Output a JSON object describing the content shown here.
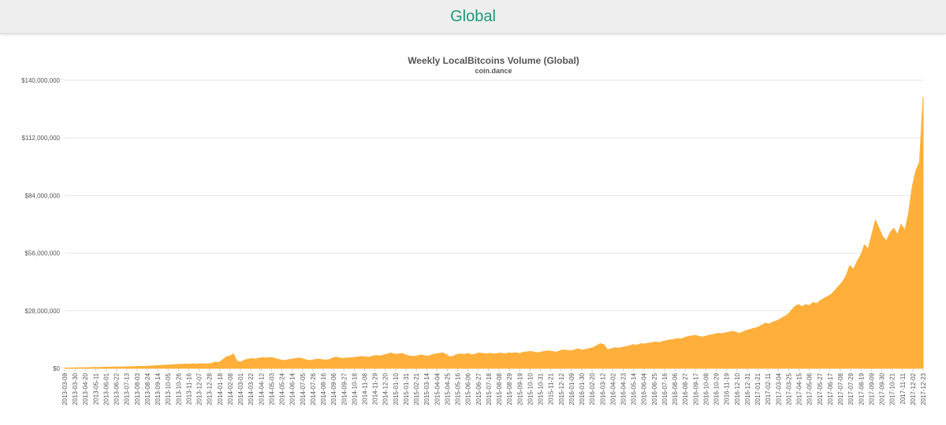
{
  "header": {
    "title": "Global"
  },
  "chart_data": {
    "type": "area",
    "title": "Weekly LocalBitcoins Volume (Global)",
    "subtitle": "coin.dance",
    "xlabel": "",
    "ylabel": "",
    "ylim": [
      0,
      140000000
    ],
    "grid": true,
    "legend": "none",
    "color": "#ffaf3a",
    "y_ticks": [
      {
        "value": 0,
        "label": "$0"
      },
      {
        "value": 28000000,
        "label": "$28,000,000"
      },
      {
        "value": 56000000,
        "label": "$56,000,000"
      },
      {
        "value": 84000000,
        "label": "$84,000,000"
      },
      {
        "value": 112000000,
        "label": "$112,000,000"
      },
      {
        "value": 140000000,
        "label": "$140,000,000"
      }
    ],
    "x_tick_labels": [
      "2013-03-09",
      "2013-03-30",
      "2013-04-20",
      "2013-05-11",
      "2013-06-01",
      "2013-06-22",
      "2013-07-13",
      "2013-08-03",
      "2013-08-24",
      "2013-09-14",
      "2013-10-05",
      "2013-10-26",
      "2013-11-16",
      "2013-12-07",
      "2013-12-28",
      "2014-01-18",
      "2014-02-08",
      "2014-03-01",
      "2014-03-22",
      "2014-04-12",
      "2014-05-03",
      "2014-05-24",
      "2014-06-14",
      "2014-07-05",
      "2014-07-26",
      "2014-08-16",
      "2014-09-06",
      "2014-09-27",
      "2014-10-18",
      "2014-11-08",
      "2014-11-29",
      "2014-12-20",
      "2015-01-10",
      "2015-01-31",
      "2015-02-21",
      "2015-03-14",
      "2015-04-04",
      "2015-04-25",
      "2015-05-16",
      "2015-06-06",
      "2015-06-27",
      "2015-07-18",
      "2015-08-08",
      "2015-08-29",
      "2015-09-19",
      "2015-10-10",
      "2015-10-31",
      "2015-11-21",
      "2015-12-12",
      "2016-01-09",
      "2016-01-30",
      "2016-02-20",
      "2016-03-12",
      "2016-04-02",
      "2016-04-23",
      "2016-05-14",
      "2016-06-04",
      "2016-06-25",
      "2016-07-16",
      "2016-08-06",
      "2016-08-27",
      "2016-09-17",
      "2016-10-08",
      "2016-10-29",
      "2016-11-19",
      "2016-12-10",
      "2016-12-31",
      "2017-01-21",
      "2017-02-11",
      "2017-03-04",
      "2017-03-25",
      "2017-04-15",
      "2017-05-06",
      "2017-05-27",
      "2017-06-17",
      "2017-07-08",
      "2017-07-29",
      "2017-08-19",
      "2017-09-09",
      "2017-09-30",
      "2017-10-21",
      "2017-11-11",
      "2017-12-02",
      "2017-12-23"
    ],
    "x_start": "2013-03-09",
    "x_end": "2017-12-23",
    "interval": "weekly",
    "values": [
      100000,
      150000,
      200000,
      250000,
      300000,
      350000,
      300000,
      400000,
      500000,
      450000,
      500000,
      600000,
      550000,
      600000,
      700000,
      650000,
      700000,
      750000,
      800000,
      850000,
      900000,
      950000,
      1000000,
      1100000,
      1200000,
      1300000,
      1400000,
      1500000,
      1600000,
      1700000,
      1800000,
      1900000,
      2000000,
      2100000,
      2000000,
      2200000,
      2000000,
      2300000,
      2100000,
      2200000,
      2400000,
      3000000,
      2800000,
      4000000,
      5500000,
      6000000,
      7000000,
      3500000,
      3000000,
      4000000,
      4500000,
      4800000,
      4500000,
      5000000,
      5200000,
      5000000,
      5300000,
      5000000,
      4500000,
      4000000,
      3800000,
      4200000,
      4500000,
      4800000,
      5000000,
      4600000,
      4000000,
      3800000,
      4200000,
      4500000,
      4300000,
      4000000,
      4200000,
      5000000,
      5500000,
      5000000,
      4800000,
      5000000,
      5100000,
      5300000,
      5500000,
      5800000,
      5600000,
      5400000,
      6000000,
      6200000,
      6000000,
      6500000,
      7000000,
      7500000,
      6800000,
      7000000,
      7200000,
      6500000,
      6000000,
      5800000,
      6000000,
      6500000,
      6200000,
      5800000,
      6500000,
      7000000,
      7200000,
      7500000,
      6800000,
      5500000,
      6000000,
      6800000,
      7000000,
      6800000,
      7200000,
      6500000,
      7000000,
      7500000,
      7200000,
      7000000,
      7300000,
      7000000,
      7200000,
      7400000,
      7000000,
      7500000,
      7300000,
      7600000,
      7200000,
      7800000,
      8000000,
      8200000,
      7900000,
      7500000,
      8000000,
      8300000,
      8500000,
      8200000,
      7800000,
      8500000,
      9000000,
      8700000,
      8500000,
      9000000,
      9500000,
      8800000,
      9200000,
      9600000,
      10000000,
      11000000,
      12000000,
      11500000,
      9000000,
      9500000,
      10000000,
      9800000,
      10200000,
      10500000,
      11000000,
      11500000,
      11200000,
      12000000,
      11800000,
      12200000,
      12500000,
      12800000,
      12500000,
      13000000,
      13500000,
      13800000,
      14000000,
      14500000,
      14200000,
      15000000,
      15500000,
      15800000,
      16000000,
      15500000,
      15200000,
      15800000,
      16200000,
      16500000,
      17000000,
      16800000,
      17200000,
      17500000,
      18000000,
      17500000,
      17000000,
      17800000,
      18500000,
      19000000,
      19500000,
      20000000,
      21000000,
      22000000,
      21500000,
      22500000,
      23000000,
      24000000,
      25000000,
      26000000,
      28000000,
      30000000,
      31000000,
      30000000,
      31000000,
      30500000,
      32000000,
      31500000,
      33000000,
      34000000,
      35000000,
      36000000,
      38000000,
      40000000,
      42000000,
      45000000,
      50000000,
      48000000,
      52000000,
      55000000,
      60000000,
      58000000,
      65000000,
      72000000,
      68000000,
      64000000,
      62000000,
      66000000,
      68000000,
      65000000,
      70000000,
      67000000,
      75000000,
      88000000,
      96000000,
      100000000,
      132000000
    ]
  }
}
